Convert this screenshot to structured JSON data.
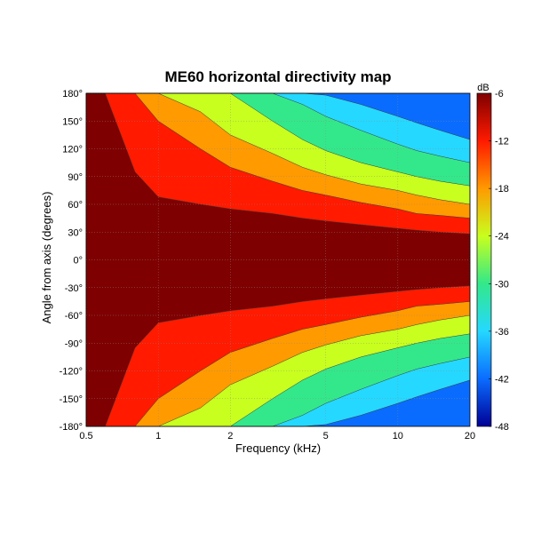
{
  "chart_data": {
    "type": "heatmap",
    "title": "ME60 horizontal directivity map",
    "xlabel": "Frequency (kHz)",
    "ylabel": "Angle from axis (degrees)",
    "x_scale": "log",
    "xlim": [
      0.5,
      20
    ],
    "ylim": [
      -180,
      180
    ],
    "x_ticks": [
      0.5,
      1,
      2,
      5,
      10,
      20
    ],
    "x_tick_labels": [
      "0.5",
      "1",
      "2",
      "5",
      "10",
      "20"
    ],
    "y_ticks": [
      180,
      150,
      120,
      90,
      60,
      30,
      0,
      -30,
      -60,
      -90,
      -120,
      -150,
      -180
    ],
    "y_tick_labels": [
      "180°",
      "150°",
      "120°",
      "90°",
      "60°",
      "30°",
      "0°",
      "-30°",
      "-60°",
      "-90°",
      "-120°",
      "-150°",
      "-180°"
    ],
    "colorbar": {
      "unit": "dB",
      "range": [
        -48,
        -6
      ],
      "ticks": [
        -6,
        -12,
        -18,
        -24,
        -30,
        -36,
        -42,
        -48
      ],
      "tick_labels": [
        "-6",
        "-12",
        "-18",
        "-24",
        "-30",
        "-36",
        "-42",
        "-48"
      ]
    },
    "contour_levels_db": [
      -6,
      -12,
      -18,
      -24,
      -30,
      -36,
      -42
    ],
    "contour_boundaries": {
      "frequency_khz": [
        0.5,
        0.6,
        0.8,
        1,
        1.5,
        2,
        3,
        4,
        5,
        7,
        10,
        12,
        15,
        20
      ],
      "angle_at_minus_6_db": [
        180,
        180,
        95,
        68,
        60,
        55,
        50,
        45,
        42,
        38,
        34,
        32,
        30,
        28
      ],
      "angle_at_minus_12_db": [
        180,
        180,
        180,
        150,
        120,
        100,
        85,
        75,
        70,
        62,
        55,
        50,
        48,
        45
      ],
      "angle_at_minus_18_db": [
        180,
        180,
        180,
        180,
        160,
        135,
        115,
        100,
        92,
        82,
        75,
        70,
        65,
        60
      ],
      "angle_at_minus_24_db": [
        180,
        180,
        180,
        180,
        180,
        180,
        150,
        130,
        118,
        105,
        95,
        90,
        85,
        80
      ],
      "angle_at_minus_30_db": [
        180,
        180,
        180,
        180,
        180,
        180,
        180,
        168,
        155,
        140,
        125,
        118,
        112,
        105
      ],
      "angle_at_minus_36_db": [
        180,
        180,
        180,
        180,
        180,
        180,
        180,
        180,
        178,
        168,
        155,
        148,
        140,
        130
      ]
    },
    "colors": [
      "#7f0000",
      "#ff1a00",
      "#ff9a00",
      "#c8ff1e",
      "#33e88a",
      "#25d8ff",
      "#0a6cff",
      "#000096"
    ],
    "grid": true
  }
}
